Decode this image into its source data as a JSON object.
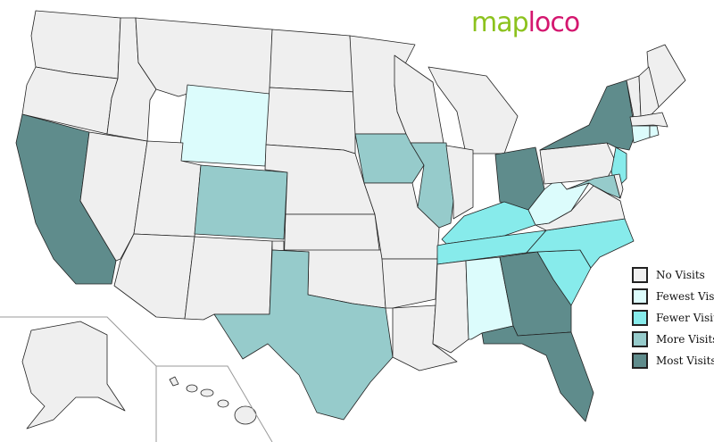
{
  "logo": {
    "part1": "map",
    "part2": "loco"
  },
  "legend": [
    {
      "key": "none",
      "label": "No Visits",
      "color": "#efefef"
    },
    {
      "key": "fewest",
      "label": "Fewest Visits",
      "color": "#dcfcfc"
    },
    {
      "key": "fewer",
      "label": "Fewer Visits",
      "color": "#87ebeb"
    },
    {
      "key": "more",
      "label": "More Visits",
      "color": "#96cbcb"
    },
    {
      "key": "most",
      "label": "Most Visits",
      "color": "#5f8c8c"
    }
  ],
  "state_visits": {
    "WA": "none",
    "OR": "none",
    "CA": "most",
    "NV": "none",
    "ID": "none",
    "MT": "none",
    "WY": "fewest",
    "UT": "none",
    "CO": "more",
    "AZ": "none",
    "NM": "none",
    "ND": "none",
    "SD": "none",
    "NE": "none",
    "KS": "none",
    "OK": "none",
    "TX": "more",
    "MN": "none",
    "IA": "more",
    "MO": "none",
    "AR": "none",
    "LA": "none",
    "WI": "none",
    "IL": "more",
    "MI": "none",
    "IN": "none",
    "OH": "most",
    "KY": "fewer",
    "TN": "fewer",
    "MS": "none",
    "AL": "fewest",
    "GA": "most",
    "FL": "most",
    "SC": "fewer",
    "NC": "fewer",
    "VA": "none",
    "WV": "fewest",
    "PA": "none",
    "NY": "most",
    "NJ": "fewer",
    "MD": "more",
    "DE": "none",
    "ME": "none",
    "VT": "none",
    "NH": "none",
    "MA": "none",
    "CT": "fewest",
    "RI": "fewest",
    "AK": "none",
    "HI": "none"
  }
}
